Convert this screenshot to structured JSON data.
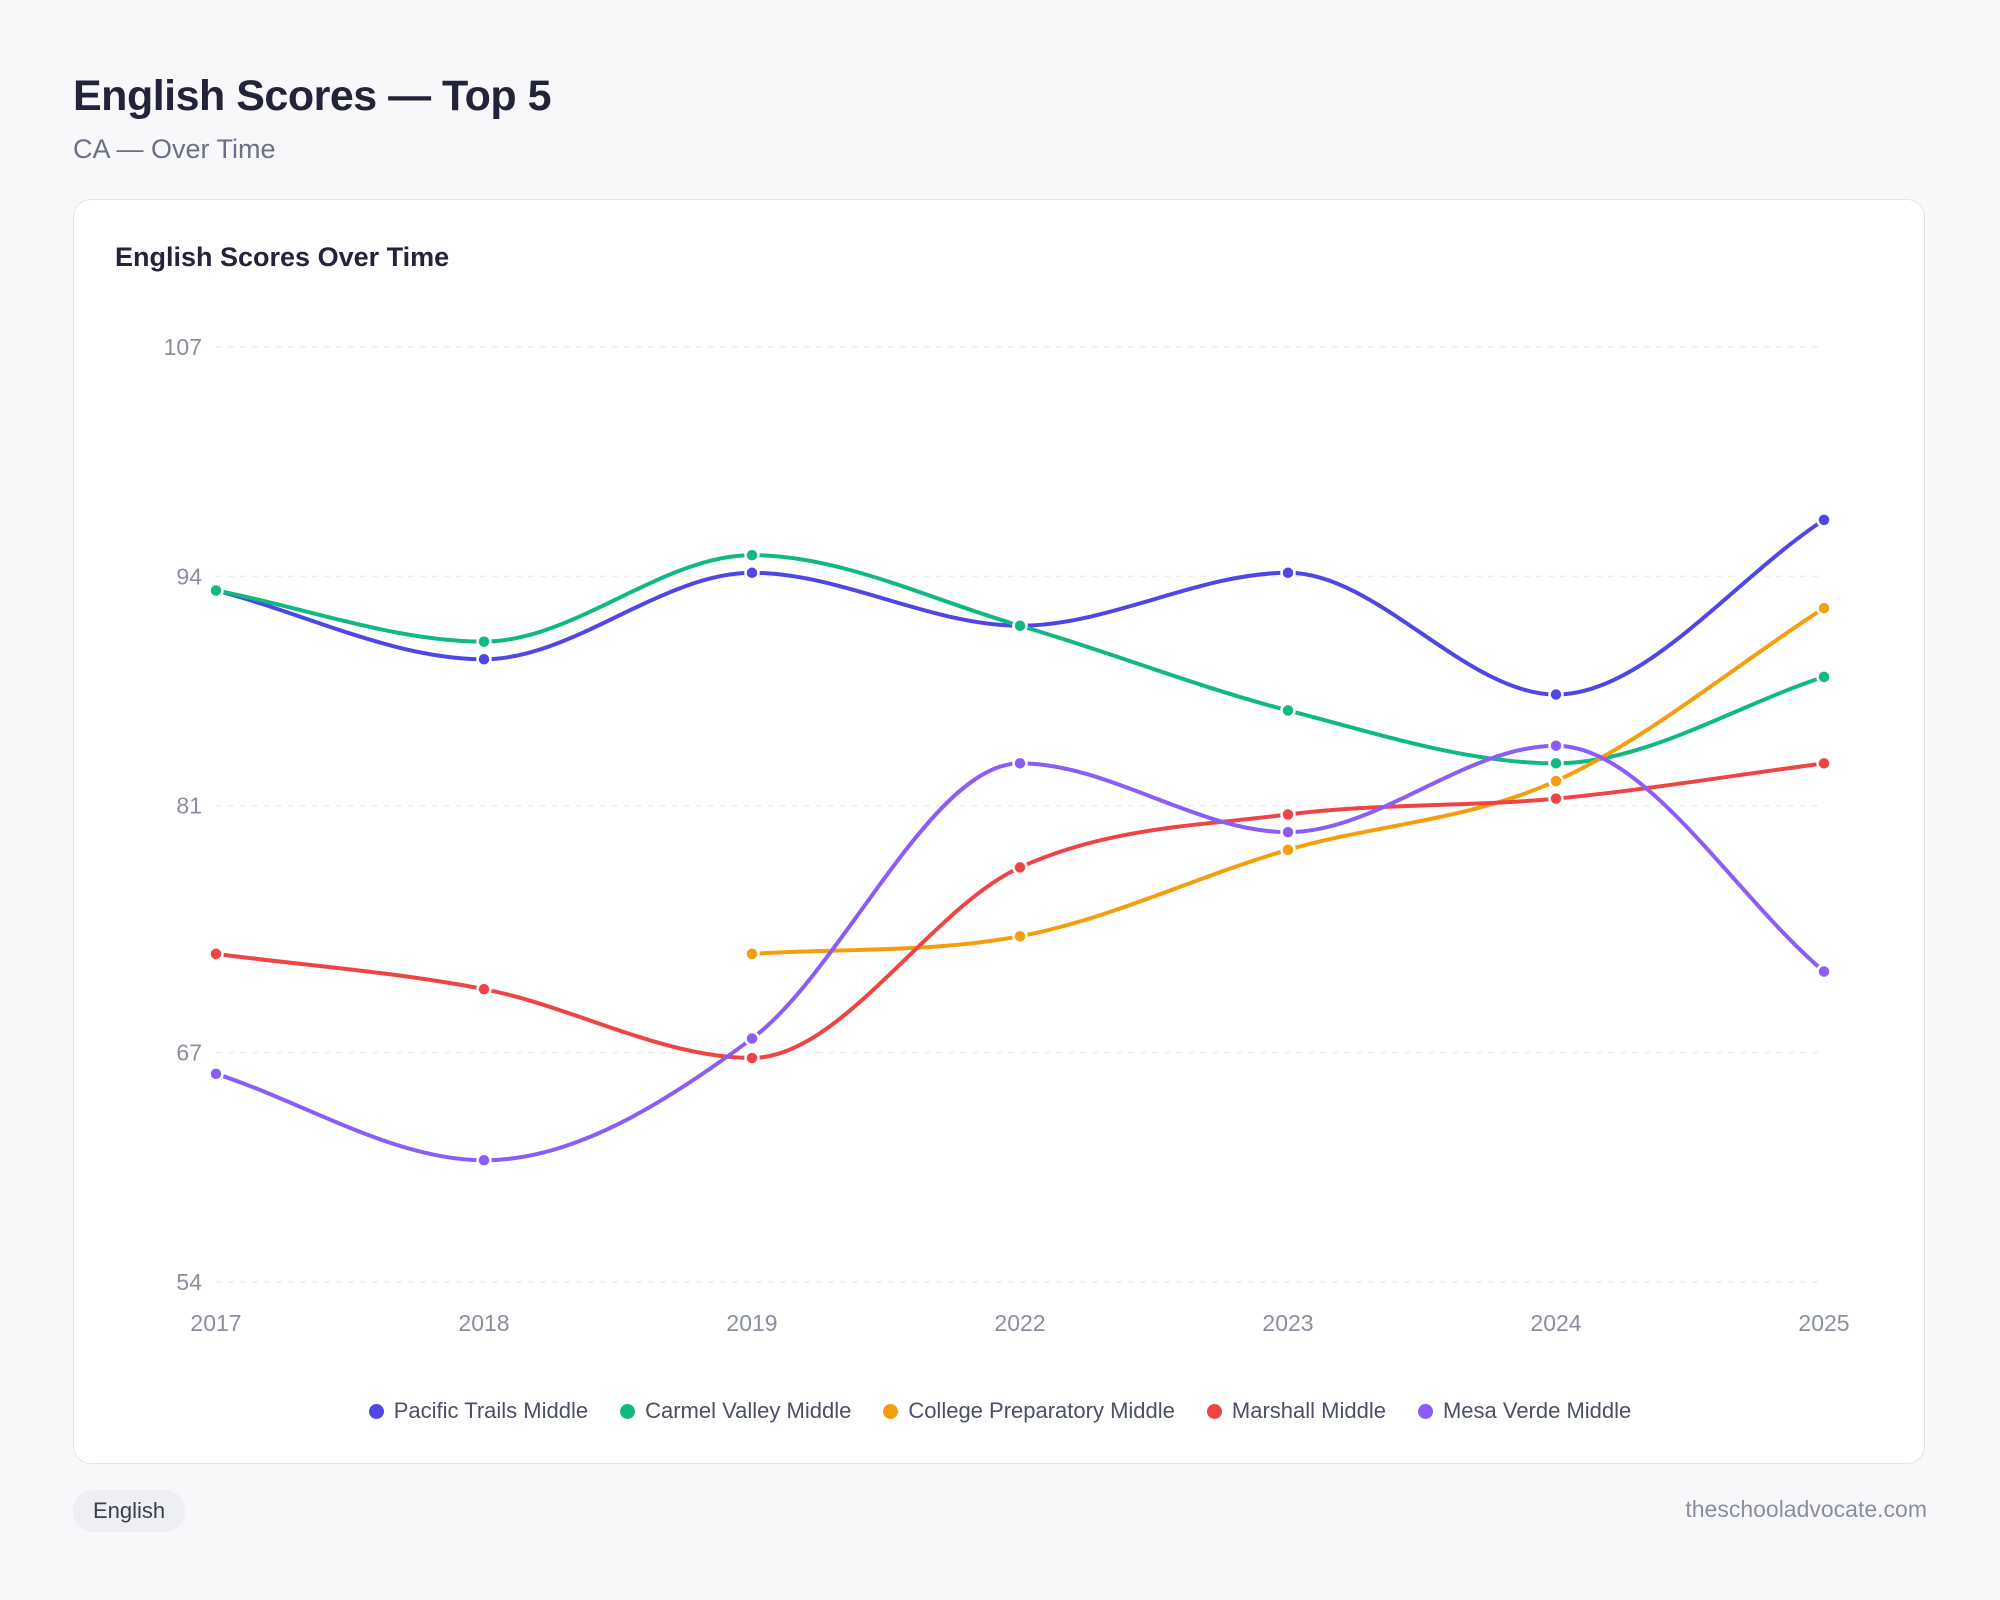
{
  "header": {
    "title": "English Scores — Top 5",
    "subtitle": "CA — Over Time"
  },
  "footer": {
    "tag": "English",
    "site": "theschooladvocate.com"
  },
  "chart_data": {
    "type": "line",
    "title": "English Scores Over Time",
    "xlabel": "",
    "ylabel": "",
    "categories": [
      "2017",
      "2018",
      "2019",
      "2022",
      "2023",
      "2024",
      "2025"
    ],
    "ylim": [
      54,
      107
    ],
    "yticks": [
      54,
      67,
      81,
      94,
      107
    ],
    "grid": true,
    "legend_position": "bottom",
    "series": [
      {
        "name": "Pacific Trails Middle",
        "color": "#4f46e5",
        "values": [
          93.2,
          89.3,
          94.2,
          91.2,
          94.2,
          87.3,
          97.2
        ]
      },
      {
        "name": "Carmel Valley Middle",
        "color": "#10b981",
        "values": [
          93.2,
          90.3,
          95.2,
          91.2,
          86.4,
          83.4,
          88.3
        ]
      },
      {
        "name": "College Preparatory Middle",
        "color": "#f59e0b",
        "values": [
          null,
          null,
          72.6,
          73.6,
          78.5,
          82.4,
          92.2
        ]
      },
      {
        "name": "Marshall Middle",
        "color": "#ef4444",
        "values": [
          72.6,
          70.6,
          66.7,
          77.5,
          80.5,
          81.4,
          83.4
        ]
      },
      {
        "name": "Mesa Verde Middle",
        "color": "#8b5cf6",
        "values": [
          65.8,
          60.9,
          67.8,
          83.4,
          79.5,
          84.4,
          71.6
        ]
      }
    ]
  }
}
